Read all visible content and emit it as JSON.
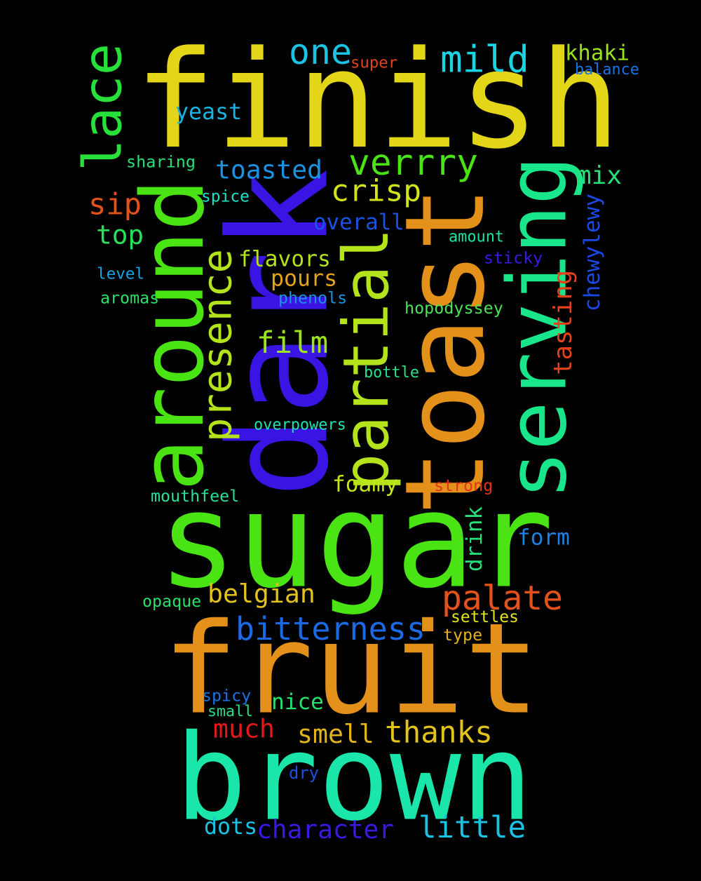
{
  "words": [
    {
      "text": "finish",
      "color": "#e3d518"
    },
    {
      "text": "sugar",
      "color": "#4ae314"
    },
    {
      "text": "fruit",
      "color": "#e3911a"
    },
    {
      "text": "brown",
      "color": "#19e6a8"
    },
    {
      "text": "dark",
      "color": "#3a14e3"
    },
    {
      "text": "toast",
      "color": "#e3911a"
    },
    {
      "text": "serving",
      "color": "#19e68a"
    },
    {
      "text": "around",
      "color": "#4ae314"
    },
    {
      "text": "partial",
      "color": "#b3e31a"
    },
    {
      "text": "presence",
      "color": "#b3e31a"
    },
    {
      "text": "lace",
      "color": "#27e03a"
    },
    {
      "text": "one",
      "color": "#1ac3e3"
    },
    {
      "text": "mild",
      "color": "#1ad3e3"
    },
    {
      "text": "khaki",
      "color": "#9be31a"
    },
    {
      "text": "super",
      "color": "#e3421a"
    },
    {
      "text": "balance",
      "color": "#1a73e3"
    },
    {
      "text": "yeast",
      "color": "#1ab3e3"
    },
    {
      "text": "verrry",
      "color": "#4ae314"
    },
    {
      "text": "toasted",
      "color": "#1a93e3"
    },
    {
      "text": "sharing",
      "color": "#27e07a"
    },
    {
      "text": "crisp",
      "color": "#d3e31a"
    },
    {
      "text": "mix",
      "color": "#27e07a"
    },
    {
      "text": "sip",
      "color": "#e3521a"
    },
    {
      "text": "spice",
      "color": "#1ae3c3"
    },
    {
      "text": "overall",
      "color": "#1a52e3"
    },
    {
      "text": "chewylewy",
      "color": "#1a4ae3"
    },
    {
      "text": "top",
      "color": "#27e05a"
    },
    {
      "text": "amount",
      "color": "#1ae3a3"
    },
    {
      "text": "sticky",
      "color": "#3a1ae3"
    },
    {
      "text": "flavors",
      "color": "#b3e31a"
    },
    {
      "text": "level",
      "color": "#1aa3e3"
    },
    {
      "text": "pours",
      "color": "#e3a31a"
    },
    {
      "text": "tasting",
      "color": "#e3421a"
    },
    {
      "text": "aromas",
      "color": "#27e06a"
    },
    {
      "text": "phenols",
      "color": "#1a93e3"
    },
    {
      "text": "hopodyssey",
      "color": "#4ae35a"
    },
    {
      "text": "film",
      "color": "#9be31a"
    },
    {
      "text": "bottle",
      "color": "#27e08a"
    },
    {
      "text": "overpowers",
      "color": "#1ae3b3"
    },
    {
      "text": "foamy",
      "color": "#c3e31a"
    },
    {
      "text": "strong",
      "color": "#e3321a"
    },
    {
      "text": "mouthfeel",
      "color": "#27e09a"
    },
    {
      "text": "drink",
      "color": "#27e07a"
    },
    {
      "text": "form",
      "color": "#1a83e3"
    },
    {
      "text": "palate",
      "color": "#e3521a"
    },
    {
      "text": "belgian",
      "color": "#e3c31a"
    },
    {
      "text": "opaque",
      "color": "#27e06a"
    },
    {
      "text": "bitterness",
      "color": "#1a6ae3"
    },
    {
      "text": "settles",
      "color": "#e3e31a"
    },
    {
      "text": "type",
      "color": "#e3b31a"
    },
    {
      "text": "spicy",
      "color": "#1a73e3"
    },
    {
      "text": "nice",
      "color": "#27e06a"
    },
    {
      "text": "small",
      "color": "#27e08a"
    },
    {
      "text": "much",
      "color": "#e31a1a"
    },
    {
      "text": "smell",
      "color": "#e3b31a"
    },
    {
      "text": "thanks",
      "color": "#e3c31a"
    },
    {
      "text": "dry",
      "color": "#1a52e3"
    },
    {
      "text": "dots",
      "color": "#1ac3e3"
    },
    {
      "text": "character",
      "color": "#3a1ae3"
    },
    {
      "text": "little",
      "color": "#1ac3e3"
    }
  ]
}
